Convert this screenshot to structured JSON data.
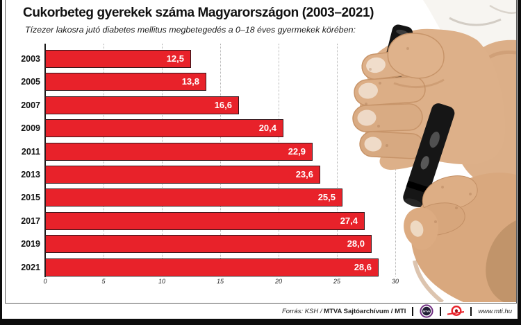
{
  "header": {
    "title": "Cukorbeteg gyerekek száma Magyarországon (2003–2021)",
    "subtitle": "Tízezer lakosra jutó diabetes mellitus megbetegedés a 0–18 éves gyermekek körében:"
  },
  "chart_data": {
    "type": "bar",
    "orientation": "horizontal",
    "categories": [
      "2003",
      "2005",
      "2007",
      "2009",
      "2011",
      "2013",
      "2015",
      "2017",
      "2019",
      "2021"
    ],
    "values": [
      12.5,
      13.8,
      16.6,
      20.4,
      22.9,
      23.6,
      25.5,
      27.4,
      28.0,
      28.6
    ],
    "value_labels": [
      "12,5",
      "13,8",
      "16,6",
      "20,4",
      "22,9",
      "23,6",
      "25,5",
      "27,4",
      "28,0",
      "28,6"
    ],
    "x_ticks": [
      "0",
      "5",
      "10",
      "15",
      "20",
      "25",
      "30"
    ],
    "x_tick_values": [
      0,
      5,
      10,
      15,
      20,
      25,
      30
    ],
    "xlim": [
      0,
      30
    ],
    "grid": true,
    "legend": false,
    "bar_color": "#e8222a",
    "value_label_color": "#ffffff"
  },
  "footer": {
    "source_italic": "Forrás: KSH /",
    "source_bold": " MTVA Sajtóarchívum / MTI",
    "mtva_logo_text": "MTVA",
    "url": "www.mti.hu",
    "mtva_purple": "#6e2c80",
    "mti_red": "#e8222a"
  }
}
